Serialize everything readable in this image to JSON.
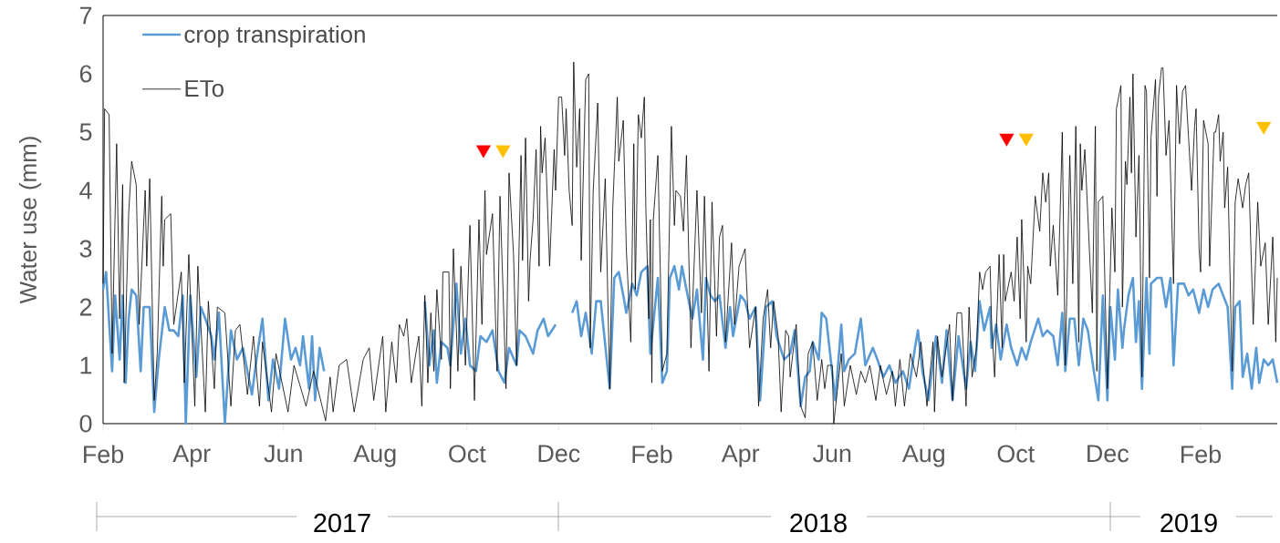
{
  "chart_data": {
    "type": "line",
    "ylabel": "Water use (mm)",
    "legend": "top left",
    "xlim": [
      "2017-02-01",
      "2019-03-24"
    ],
    "ylim": [
      0,
      7
    ],
    "yticks": [
      0,
      1,
      2,
      3,
      4,
      5,
      6,
      7
    ],
    "xticks": [
      {
        "value": "2017-02-01",
        "label": "Feb"
      },
      {
        "value": "2017-04-01",
        "label": "Apr"
      },
      {
        "value": "2017-06-01",
        "label": "Jun"
      },
      {
        "value": "2017-08-01",
        "label": "Aug"
      },
      {
        "value": "2017-10-01",
        "label": "Oct"
      },
      {
        "value": "2017-12-01",
        "label": "Dec"
      },
      {
        "value": "2018-02-01",
        "label": "Feb"
      },
      {
        "value": "2018-04-01",
        "label": "Apr"
      },
      {
        "value": "2018-06-01",
        "label": "Jun"
      },
      {
        "value": "2018-08-01",
        "label": "Aug"
      },
      {
        "value": "2018-10-01",
        "label": "Oct"
      },
      {
        "value": "2018-12-01",
        "label": "Dec"
      },
      {
        "value": "2019-02-01",
        "label": "Feb"
      }
    ],
    "annotations": [
      "2017",
      "2018",
      "2019"
    ],
    "series": [
      {
        "name": "crop transpiration",
        "color": "#5b9bd5",
        "x": [
          "2017-02-01",
          "2017-02-03",
          "2017-02-07",
          "2017-02-09",
          "2017-02-12",
          "2017-02-14",
          "2017-02-16",
          "2017-02-18",
          "2017-02-20",
          "2017-02-23",
          "2017-02-26",
          "2017-02-28",
          "2017-03-04",
          "2017-03-07",
          "2017-03-10",
          "2017-03-14",
          "2017-03-17",
          "2017-03-20",
          "2017-03-23",
          "2017-03-26",
          "2017-03-28",
          "2017-03-31",
          "2017-04-04",
          "2017-04-07",
          "2017-04-10",
          "2017-04-14",
          "2017-04-16",
          "2017-04-19",
          "2017-04-23",
          "2017-04-27",
          "2017-05-01",
          "2017-05-05",
          "2017-05-11",
          "2017-05-14",
          "2017-05-18",
          "2017-05-22",
          "2017-05-25",
          "2017-05-29",
          "2017-06-02",
          "2017-06-06",
          "2017-06-09",
          "2017-06-12",
          "2017-06-14",
          "2017-06-18",
          "2017-06-20",
          "2017-06-22",
          "2017-06-25",
          "2017-06-28",
          "2017-07-31",
          "2017-09-03",
          "2017-09-06",
          "2017-09-09",
          "2017-09-11",
          "2017-09-14",
          "2017-09-18",
          "2017-09-20",
          "2017-09-24",
          "2017-09-27",
          "2017-09-30",
          "2017-10-03",
          "2017-10-07",
          "2017-10-10",
          "2017-10-14",
          "2017-10-18",
          "2017-10-22",
          "2017-10-26",
          "2017-10-29",
          "2017-11-03",
          "2017-11-05",
          "2017-11-09",
          "2017-11-14",
          "2017-11-17",
          "2017-11-21",
          "2017-11-24",
          "2017-11-29",
          "2017-12-04",
          "2017-12-10",
          "2017-12-13",
          "2017-12-16",
          "2017-12-19",
          "2017-12-23",
          "2017-12-26",
          "2017-12-29",
          "2018-01-04",
          "2018-01-07",
          "2018-01-10",
          "2018-01-13",
          "2018-01-15",
          "2018-01-19",
          "2018-01-22",
          "2018-01-25",
          "2018-01-29",
          "2018-01-31",
          "2018-02-05",
          "2018-02-08",
          "2018-02-11",
          "2018-02-13",
          "2018-02-16",
          "2018-02-19",
          "2018-02-21",
          "2018-02-24",
          "2018-02-28",
          "2018-03-03",
          "2018-03-07",
          "2018-03-09",
          "2018-03-12",
          "2018-03-15",
          "2018-03-18",
          "2018-03-22",
          "2018-03-25",
          "2018-03-27",
          "2018-04-01",
          "2018-04-04",
          "2018-04-07",
          "2018-04-11",
          "2018-04-14",
          "2018-04-18",
          "2018-04-22",
          "2018-04-25",
          "2018-04-30",
          "2018-05-04",
          "2018-05-07",
          "2018-05-11",
          "2018-05-14",
          "2018-05-17",
          "2018-05-19",
          "2018-05-23",
          "2018-05-25",
          "2018-05-28",
          "2018-05-31",
          "2018-06-03",
          "2018-06-07",
          "2018-06-09",
          "2018-06-12",
          "2018-06-16",
          "2018-06-20",
          "2018-06-23",
          "2018-06-28",
          "2018-07-01",
          "2018-07-05",
          "2018-07-09",
          "2018-07-13",
          "2018-07-18",
          "2018-07-22",
          "2018-07-26",
          "2018-07-28",
          "2018-07-31",
          "2018-08-04",
          "2018-08-09",
          "2018-08-13",
          "2018-08-16",
          "2018-08-20",
          "2018-08-24",
          "2018-08-29",
          "2018-09-01",
          "2018-09-04",
          "2018-09-07",
          "2018-09-10",
          "2018-09-14",
          "2018-09-15",
          "2018-09-18",
          "2018-09-21",
          "2018-09-25",
          "2018-09-28",
          "2018-10-02",
          "2018-10-05",
          "2018-10-08",
          "2018-10-11",
          "2018-10-16",
          "2018-10-19",
          "2018-10-22",
          "2018-10-26",
          "2018-10-29",
          "2018-11-01",
          "2018-11-03",
          "2018-11-06",
          "2018-11-09",
          "2018-11-12",
          "2018-11-15",
          "2018-11-18",
          "2018-11-22",
          "2018-11-25",
          "2018-11-28",
          "2018-12-01",
          "2018-12-03",
          "2018-12-06",
          "2018-12-08",
          "2018-12-11",
          "2018-12-12",
          "2018-12-15",
          "2018-12-18",
          "2018-12-20",
          "2018-12-22",
          "2018-12-24",
          "2018-12-27",
          "2018-12-29",
          "2018-12-30",
          "2019-01-03",
          "2019-01-06",
          "2019-01-09",
          "2019-01-12",
          "2019-01-14",
          "2019-01-17",
          "2019-01-21",
          "2019-01-24",
          "2019-01-27",
          "2019-01-31",
          "2019-02-03",
          "2019-02-06",
          "2019-02-09",
          "2019-02-13",
          "2019-02-16",
          "2019-02-19",
          "2019-02-22",
          "2019-02-24",
          "2019-02-27",
          "2019-03-01",
          "2019-03-04",
          "2019-03-07",
          "2019-03-10",
          "2019-03-12",
          "2019-03-15",
          "2019-03-18",
          "2019-03-21",
          "2019-03-24"
        ],
        "values": [
          2.3,
          2.6,
          0.9,
          2.2,
          1.1,
          2.2,
          0.7,
          1.8,
          2.3,
          2.2,
          0.9,
          2.0,
          2.0,
          0.2,
          1.1,
          2.0,
          1.6,
          1.6,
          1.5,
          2.2,
          0.0,
          2.2,
          0.8,
          2.0,
          1.8,
          1.5,
          1.1,
          1.9,
          0.0,
          1.6,
          1.1,
          1.3,
          0.5,
          1.1,
          1.8,
          0.4,
          1.1,
          0.6,
          1.8,
          1.1,
          1.3,
          1.0,
          1.5,
          0.6,
          1.5,
          0.4,
          1.3,
          0.9,
          null,
          2.1,
          1.0,
          1.6,
          0.7,
          1.4,
          1.3,
          1.0,
          2.4,
          1.2,
          1.8,
          1.0,
          0.9,
          1.5,
          1.4,
          1.6,
          0.9,
          0.7,
          1.3,
          1.0,
          1.6,
          1.5,
          1.2,
          1.6,
          1.8,
          1.5,
          1.7,
          null,
          1.9,
          2.1,
          1.5,
          1.9,
          1.2,
          2.1,
          2.1,
          0.6,
          2.5,
          2.6,
          2.2,
          1.9,
          2.4,
          2.2,
          2.6,
          2.7,
          1.2,
          2.5,
          0.7,
          0.9,
          2.5,
          2.7,
          2.3,
          2.7,
          2.3,
          1.8,
          2.3,
          1.1,
          2.5,
          2.2,
          2.1,
          2.2,
          1.3,
          2.0,
          1.5,
          2.2,
          2.1,
          1.8,
          2.0,
          0.4,
          2.0,
          2.1,
          1.5,
          1.1,
          1.2,
          1.6,
          0.3,
          0.8,
          0.9,
          1.4,
          1.1,
          1.9,
          1.8,
          1.1,
          0.4,
          1.7,
          0.9,
          1.1,
          1.2,
          1.8,
          1.0,
          1.3,
          1.1,
          0.8,
          1.0,
          0.7,
          0.9,
          0.6,
          1.3,
          1.6,
          0.9,
          0.4,
          1.5,
          0.7,
          1.6,
          0.4,
          1.5,
          0.6,
          1.4,
          0.9,
          2.1,
          1.6,
          2.0,
          1.3,
          1.7,
          1.1,
          1.7,
          1.3,
          1.0,
          1.3,
          1.1,
          1.4,
          1.8,
          1.5,
          1.6,
          1.5,
          1.0,
          1.9,
          0.9,
          1.8,
          1.8,
          1.0,
          1.8,
          1.6,
          0.9,
          0.4,
          2.2,
          0.4,
          2.0,
          1.1,
          2.3,
          1.3,
          1.6,
          2.2,
          2.5,
          1.4,
          2.1,
          0.6,
          2.5,
          1.2,
          2.4,
          2.5,
          2.5,
          2.0,
          2.5,
          1.0,
          2.4,
          2.4,
          2.2,
          2.3,
          1.9,
          2.3,
          2.0,
          2.3,
          2.4,
          2.2,
          2.0,
          0.6,
          2.0,
          2.1,
          0.8,
          1.2,
          0.6,
          1.3,
          0.7,
          1.1,
          1.0,
          1.1,
          0.7
        ]
      },
      {
        "name": "ETo",
        "color": "#000000",
        "x": [
          "2017-02-01",
          "2017-02-02",
          "2017-02-05",
          "2017-02-07",
          "2017-02-10",
          "2017-02-12",
          "2017-02-14",
          "2017-02-15",
          "2017-02-18",
          "2017-02-20",
          "2017-02-23",
          "2017-02-25",
          "2017-03-01",
          "2017-03-02",
          "2017-03-04",
          "2017-03-07",
          "2017-03-09",
          "2017-03-12",
          "2017-03-13",
          "2017-03-14",
          "2017-03-18",
          "2017-03-20",
          "2017-03-25",
          "2017-03-27",
          "2017-03-30",
          "2017-04-03",
          "2017-04-05",
          "2017-04-10",
          "2017-04-12",
          "2017-04-16",
          "2017-04-18",
          "2017-04-23",
          "2017-04-27",
          "2017-04-30",
          "2017-05-03",
          "2017-05-08",
          "2017-05-12",
          "2017-05-16",
          "2017-05-18",
          "2017-05-24",
          "2017-05-27",
          "2017-06-04",
          "2017-06-08",
          "2017-06-16",
          "2017-06-21",
          "2017-06-29",
          "2017-07-02",
          "2017-07-04",
          "2017-07-08",
          "2017-07-13",
          "2017-07-18",
          "2017-07-24",
          "2017-07-28",
          "2017-07-31",
          "2017-08-06",
          "2017-08-08",
          "2017-08-12",
          "2017-08-15",
          "2017-08-17",
          "2017-08-20",
          "2017-08-22",
          "2017-08-25",
          "2017-08-28",
          "2017-08-30",
          "2017-09-01",
          "2017-09-03",
          "2017-09-05",
          "2017-09-07",
          "2017-09-09",
          "2017-09-11",
          "2017-09-14",
          "2017-09-15",
          "2017-09-19",
          "2017-09-20",
          "2017-09-22",
          "2017-09-25",
          "2017-09-27",
          "2017-09-30",
          "2017-10-03",
          "2017-10-06",
          "2017-10-09",
          "2017-10-11",
          "2017-10-13",
          "2017-10-14",
          "2017-10-18",
          "2017-10-21",
          "2017-10-23",
          "2017-10-25",
          "2017-10-27",
          "2017-10-29",
          "2017-11-01",
          "2017-11-03",
          "2017-11-06",
          "2017-11-07",
          "2017-11-09",
          "2017-11-11",
          "2017-11-12",
          "2017-11-14",
          "2017-11-16",
          "2017-11-18",
          "2017-11-19",
          "2017-11-20",
          "2017-11-22",
          "2017-11-25",
          "2017-11-28",
          "2017-11-29",
          "2017-12-01",
          "2017-12-03",
          "2017-12-05",
          "2017-12-06",
          "2017-12-08",
          "2017-12-10",
          "2017-12-11",
          "2017-12-13",
          "2017-12-15",
          "2017-12-16",
          "2017-12-19",
          "2017-12-21",
          "2017-12-22",
          "2017-12-24",
          "2017-12-27",
          "2017-12-29",
          "2018-01-01",
          "2018-01-04",
          "2018-01-06",
          "2018-01-09",
          "2018-01-10",
          "2018-01-13",
          "2018-01-15",
          "2018-01-18",
          "2018-01-20",
          "2018-01-21",
          "2018-01-23",
          "2018-01-25",
          "2018-01-27",
          "2018-01-28",
          "2018-01-30",
          "2018-01-31",
          "2018-02-01",
          "2018-02-02",
          "2018-02-05",
          "2018-02-08",
          "2018-02-11",
          "2018-02-14",
          "2018-02-16",
          "2018-02-17",
          "2018-02-20",
          "2018-02-22",
          "2018-02-24",
          "2018-02-27",
          "2018-03-03",
          "2018-03-06",
          "2018-03-08",
          "2018-03-11",
          "2018-03-13",
          "2018-03-16",
          "2018-03-18",
          "2018-03-20",
          "2018-03-22",
          "2018-03-26",
          "2018-03-28",
          "2018-03-31",
          "2018-04-04",
          "2018-04-05",
          "2018-04-07",
          "2018-04-11",
          "2018-04-13",
          "2018-04-16",
          "2018-04-19",
          "2018-04-21",
          "2018-04-23",
          "2018-04-26",
          "2018-04-28",
          "2018-05-01",
          "2018-05-03",
          "2018-05-04",
          "2018-05-08",
          "2018-05-11",
          "2018-05-14",
          "2018-05-16",
          "2018-05-19",
          "2018-05-22",
          "2018-05-25",
          "2018-05-27",
          "2018-05-29",
          "2018-06-01",
          "2018-06-02",
          "2018-06-07",
          "2018-06-09",
          "2018-06-13",
          "2018-06-17",
          "2018-06-20",
          "2018-06-23",
          "2018-06-26",
          "2018-06-30",
          "2018-07-03",
          "2018-07-07",
          "2018-07-11",
          "2018-07-13",
          "2018-07-16",
          "2018-07-19",
          "2018-07-23",
          "2018-07-27",
          "2018-07-30",
          "2018-08-03",
          "2018-08-07",
          "2018-08-08",
          "2018-08-10",
          "2018-08-13",
          "2018-08-18",
          "2018-08-20",
          "2018-08-23",
          "2018-08-26",
          "2018-08-29",
          "2018-08-31",
          "2018-09-02",
          "2018-09-05",
          "2018-09-07",
          "2018-09-09",
          "2018-09-11",
          "2018-09-14",
          "2018-09-15",
          "2018-09-17",
          "2018-09-20",
          "2018-09-22",
          "2018-09-23",
          "2018-09-24",
          "2018-09-28",
          "2018-09-30",
          "2018-10-02",
          "2018-10-04",
          "2018-10-05",
          "2018-10-08",
          "2018-10-09",
          "2018-10-11",
          "2018-10-14",
          "2018-10-17",
          "2018-10-19",
          "2018-10-21",
          "2018-10-23",
          "2018-10-24",
          "2018-10-26",
          "2018-10-29",
          "2018-10-31",
          "2018-11-01",
          "2018-11-03",
          "2018-11-06",
          "2018-11-08",
          "2018-11-10",
          "2018-11-12",
          "2018-11-13",
          "2018-11-14",
          "2018-11-16",
          "2018-11-19",
          "2018-11-21",
          "2018-11-23",
          "2018-11-24",
          "2018-11-25",
          "2018-11-28",
          "2018-12-01",
          "2018-12-04",
          "2018-12-06",
          "2018-12-07",
          "2018-12-10",
          "2018-12-11",
          "2018-12-13",
          "2018-12-14",
          "2018-12-16",
          "2018-12-17",
          "2018-12-18",
          "2018-12-20",
          "2018-12-22",
          "2018-12-24",
          "2018-12-26",
          "2018-12-27",
          "2018-12-29",
          "2018-12-30",
          "2019-01-02",
          "2019-01-03",
          "2019-01-04",
          "2019-01-06",
          "2019-01-07",
          "2019-01-09",
          "2019-01-11",
          "2019-01-14",
          "2019-01-16",
          "2019-01-18",
          "2019-01-20",
          "2019-01-22",
          "2019-01-24",
          "2019-01-26",
          "2019-01-28",
          "2019-01-29",
          "2019-01-31",
          "2019-02-01",
          "2019-02-03",
          "2019-02-06",
          "2019-02-07",
          "2019-02-10",
          "2019-02-11",
          "2019-02-13",
          "2019-02-14",
          "2019-02-16",
          "2019-02-17",
          "2019-02-19",
          "2019-02-22",
          "2019-02-24",
          "2019-02-26",
          "2019-03-01",
          "2019-03-03",
          "2019-03-05",
          "2019-03-08",
          "2019-03-11",
          "2019-03-13",
          "2019-03-16",
          "2019-03-18",
          "2019-03-21",
          "2019-03-23",
          "2019-03-24"
        ],
        "values": [
          2.4,
          5.4,
          5.3,
          1.2,
          4.8,
          1.8,
          4.1,
          0.7,
          3.6,
          4.5,
          4.1,
          1.7,
          4.0,
          2.7,
          4.2,
          0.4,
          1.2,
          3.9,
          2.7,
          3.5,
          3.6,
          1.7,
          2.6,
          0.7,
          2.9,
          0.3,
          2.7,
          0.2,
          2.1,
          0.6,
          2.0,
          1.9,
          0.3,
          1.6,
          1.7,
          0.5,
          1.5,
          0.3,
          1.4,
          0.2,
          1.2,
          0.2,
          1.0,
          0.3,
          0.9,
          0.05,
          0.8,
          0.2,
          1.0,
          1.1,
          0.2,
          1.1,
          1.3,
          0.4,
          1.5,
          0.2,
          1.4,
          0.7,
          1.7,
          1.5,
          1.8,
          0.7,
          1.2,
          1.5,
          0.3,
          2.2,
          0.7,
          1.9,
          0.9,
          2.3,
          1.1,
          2.6,
          2.6,
          0.6,
          3.0,
          0.9,
          2.7,
          1.0,
          3.4,
          0.4,
          3.5,
          1.7,
          4.0,
          2.9,
          3.6,
          0.9,
          3.9,
          2.3,
          0.6,
          4.3,
          2.9,
          1.0,
          4.6,
          2.8,
          4.9,
          2.1,
          2.8,
          3.5,
          4.7,
          2.7,
          5.1,
          4.3,
          4.9,
          2.7,
          4.7,
          4.0,
          5.6,
          5.6,
          4.6,
          5.4,
          4.0,
          3.4,
          6.2,
          4.4,
          5.4,
          2.8,
          5.9,
          6.0,
          1.3,
          4.0,
          5.5,
          2.6,
          4.2,
          0.6,
          3.7,
          5.6,
          4.5,
          5.2,
          3.0,
          1.4,
          4.8,
          2.3,
          5.3,
          4.9,
          5.6,
          3.7,
          1.8,
          3.5,
          0.7,
          3.5,
          4.6,
          0.9,
          1.2,
          5.1,
          3.4,
          4.0,
          3.9,
          3.3,
          4.6,
          1.3,
          4.0,
          1.9,
          3.9,
          0.9,
          3.8,
          1.5,
          3.2,
          3.4,
          1.4,
          3.1,
          1.7,
          2.7,
          3.0,
          2.4,
          1.3,
          2.0,
          0.3,
          1.8,
          2.3,
          1.3,
          2.1,
          1.5,
          0.2,
          1.6,
          1.5,
          0.8,
          1.7,
          0.3,
          0.1,
          1.2,
          1.4,
          0.4,
          1.1,
          0.6,
          1.0,
          1.0,
          0.0,
          1.2,
          0.3,
          1.0,
          0.5,
          0.9,
          0.7,
          1.0,
          0.4,
          1.0,
          0.5,
          0.9,
          0.3,
          1.1,
          0.3,
          1.2,
          0.8,
          1.4,
          0.3,
          1.4,
          0.2,
          1.5,
          0.8,
          1.7,
          0.4,
          1.9,
          1.9,
          0.3,
          2.0,
          0.8,
          1.3,
          2.6,
          2.3,
          2.6,
          2.7,
          1.7,
          0.8,
          2.9,
          1.3,
          2.9,
          2.1,
          2.6,
          2.1,
          3.2,
          1.8,
          3.5,
          1.4,
          2.7,
          2.4,
          3.9,
          3.3,
          4.3,
          3.8,
          4.3,
          2.7,
          3.4,
          2.2,
          4.0,
          5.0,
          1.0,
          4.6,
          2.4,
          5.1,
          1.4,
          4.8,
          4.0,
          4.7,
          3.0,
          1.9,
          5.1,
          0.9,
          3.8,
          3.9,
          0.6,
          3.7,
          2.6,
          5.4,
          5.8,
          2.0,
          4.5,
          4.1,
          5.6,
          4.3,
          6.0,
          3.2,
          4.6,
          0.8,
          5.8,
          5.7,
          2.5,
          4.9,
          5.9,
          3.9,
          5.6,
          6.1,
          6.1,
          4.6,
          5.2,
          2.4,
          5.8,
          4.8,
          5.7,
          5.8,
          4.9,
          4.0,
          5.1,
          5.4,
          3.0,
          2.6,
          5.2,
          4.8,
          2.7,
          5.0,
          5.0,
          5.3,
          4.5,
          5.0,
          3.7,
          4.4,
          0.9,
          3.8,
          4.2,
          3.7,
          4.1,
          4.3,
          1.7,
          3.8,
          2.7,
          3.1,
          1.7,
          3.2,
          1.4,
          2.5
        ]
      },
      {
        "color": "#ff0000",
        "type": "scatter",
        "marker": "triangle",
        "x": [
          "2017-10-12",
          "2018-09-25"
        ],
        "values": [
          4.7,
          4.9
        ]
      },
      {
        "color": "#ffc000",
        "type": "scatter",
        "marker": "triangle",
        "x": [
          "2017-10-25",
          "2018-10-08",
          "2019-03-15"
        ],
        "values": [
          4.7,
          4.9,
          5.1
        ]
      }
    ]
  }
}
